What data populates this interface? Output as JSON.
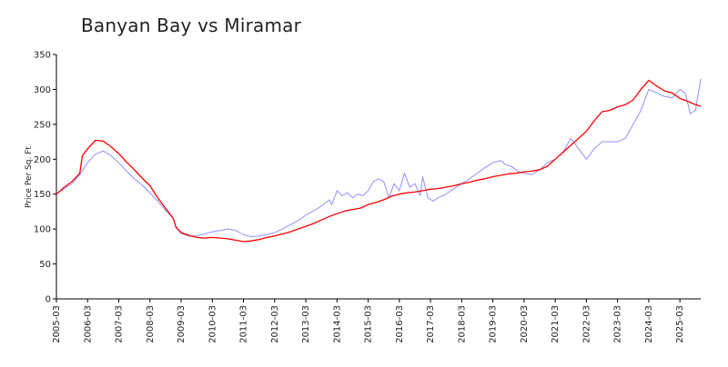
{
  "chart_data": {
    "type": "line",
    "title": "Banyan Bay vs Miramar",
    "xlabel": "",
    "ylabel": "Price Per Sq. Ft",
    "ylim": [
      0,
      350
    ],
    "xlim": [
      "2005-03",
      "2025-11"
    ],
    "yticks": [
      0,
      50,
      100,
      150,
      200,
      250,
      300,
      350
    ],
    "xticks": [
      "2005-03",
      "2006-03",
      "2007-03",
      "2008-03",
      "2009-03",
      "2010-03",
      "2011-03",
      "2012-03",
      "2013-03",
      "2014-03",
      "2015-03",
      "2016-03",
      "2017-03",
      "2018-03",
      "2019-03",
      "2020-03",
      "2021-03",
      "2022-03",
      "2023-03",
      "2024-03",
      "2025-03"
    ],
    "grid": false,
    "legend": "none",
    "series": [
      {
        "color": "#ff0000",
        "x": [
          "2005-03",
          "2005-06",
          "2005-09",
          "2005-12",
          "2006-01",
          "2006-03",
          "2006-06",
          "2006-09",
          "2006-12",
          "2007-03",
          "2007-06",
          "2007-09",
          "2007-12",
          "2008-03",
          "2008-06",
          "2008-09",
          "2008-12",
          "2009-01",
          "2009-03",
          "2009-06",
          "2009-09",
          "2009-12",
          "2010-03",
          "2010-06",
          "2010-09",
          "2010-12",
          "2011-03",
          "2011-06",
          "2011-09",
          "2011-12",
          "2012-03",
          "2012-06",
          "2012-09",
          "2012-12",
          "2013-03",
          "2013-06",
          "2013-09",
          "2013-12",
          "2014-03",
          "2014-06",
          "2014-09",
          "2014-12",
          "2015-03",
          "2015-06",
          "2015-09",
          "2015-12",
          "2016-03",
          "2016-06",
          "2016-09",
          "2016-12",
          "2017-03",
          "2017-06",
          "2017-09",
          "2017-12",
          "2018-03",
          "2018-06",
          "2018-09",
          "2018-12",
          "2019-03",
          "2019-06",
          "2019-09",
          "2019-12",
          "2020-03",
          "2020-06",
          "2020-09",
          "2020-12",
          "2021-03",
          "2021-06",
          "2021-09",
          "2021-12",
          "2022-03",
          "2022-06",
          "2022-09",
          "2022-12",
          "2023-03",
          "2023-06",
          "2023-09",
          "2023-12",
          "2024-03",
          "2024-06",
          "2024-09",
          "2024-12",
          "2025-03",
          "2025-06",
          "2025-09",
          "2025-11"
        ],
        "values": [
          150,
          160,
          168,
          180,
          205,
          215,
          227,
          226,
          218,
          208,
          196,
          185,
          173,
          162,
          145,
          130,
          115,
          103,
          95,
          91,
          88,
          87,
          88,
          87,
          86,
          84,
          82,
          83,
          85,
          88,
          90,
          93,
          96,
          100,
          104,
          108,
          113,
          118,
          122,
          126,
          128,
          130,
          135,
          138,
          142,
          147,
          150,
          152,
          153,
          155,
          157,
          158,
          160,
          162,
          165,
          167,
          170,
          172,
          175,
          177,
          179,
          180,
          182,
          183,
          185,
          190,
          200,
          210,
          220,
          230,
          240,
          255,
          268,
          270,
          275,
          278,
          285,
          300,
          313,
          305,
          298,
          295,
          287,
          283,
          278,
          276
        ]
      },
      {
        "color": "#9999ff",
        "x": [
          "2005-03",
          "2005-06",
          "2005-09",
          "2005-12",
          "2006-03",
          "2006-06",
          "2006-09",
          "2006-12",
          "2007-03",
          "2007-06",
          "2007-09",
          "2007-12",
          "2008-03",
          "2008-06",
          "2008-09",
          "2008-12",
          "2009-01",
          "2009-03",
          "2009-06",
          "2009-09",
          "2009-12",
          "2010-03",
          "2010-06",
          "2010-09",
          "2010-12",
          "2011-03",
          "2011-06",
          "2011-09",
          "2011-12",
          "2012-03",
          "2012-06",
          "2012-09",
          "2012-12",
          "2013-03",
          "2013-06",
          "2013-09",
          "2013-12",
          "2014-01",
          "2014-03",
          "2014-05",
          "2014-07",
          "2014-09",
          "2014-11",
          "2015-01",
          "2015-03",
          "2015-05",
          "2015-07",
          "2015-09",
          "2015-11",
          "2016-01",
          "2016-03",
          "2016-05",
          "2016-07",
          "2016-09",
          "2016-11",
          "2016-12",
          "2017-02",
          "2017-04",
          "2017-06",
          "2017-09",
          "2017-12",
          "2018-03",
          "2018-06",
          "2018-09",
          "2018-12",
          "2019-03",
          "2019-06",
          "2019-08",
          "2019-10",
          "2020-01",
          "2020-03",
          "2020-06",
          "2020-09",
          "2020-12",
          "2021-03",
          "2021-06",
          "2021-09",
          "2021-12",
          "2022-03",
          "2022-06",
          "2022-09",
          "2022-12",
          "2023-03",
          "2023-06",
          "2023-09",
          "2023-12",
          "2024-03",
          "2024-06",
          "2024-09",
          "2024-12",
          "2025-03",
          "2025-05",
          "2025-07",
          "2025-09",
          "2025-11"
        ],
        "values": [
          150,
          158,
          165,
          178,
          195,
          207,
          212,
          205,
          195,
          183,
          172,
          163,
          152,
          140,
          127,
          115,
          102,
          94,
          90,
          90,
          93,
          96,
          98,
          100,
          98,
          92,
          89,
          90,
          92,
          95,
          100,
          106,
          112,
          120,
          126,
          133,
          142,
          135,
          155,
          148,
          152,
          145,
          150,
          148,
          155,
          168,
          172,
          168,
          145,
          165,
          155,
          180,
          160,
          165,
          148,
          175,
          145,
          140,
          145,
          150,
          158,
          165,
          172,
          180,
          188,
          195,
          198,
          192,
          190,
          182,
          180,
          178,
          185,
          195,
          200,
          210,
          230,
          215,
          200,
          215,
          225,
          225,
          225,
          230,
          250,
          270,
          300,
          295,
          290,
          288,
          300,
          295,
          265,
          270,
          315
        ]
      }
    ]
  }
}
